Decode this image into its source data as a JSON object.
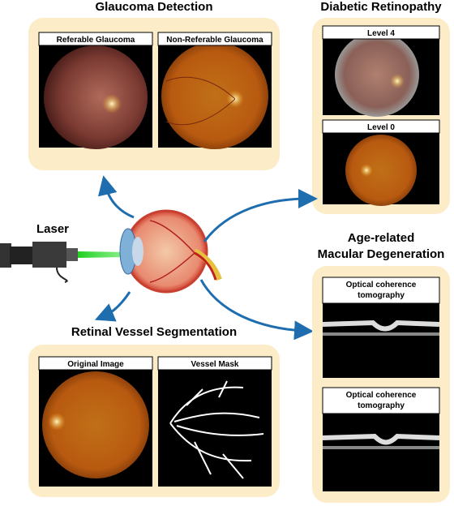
{
  "panels": {
    "glaucoma": {
      "title": "Glaucoma Detection",
      "images": [
        {
          "label": "Referable Glaucoma"
        },
        {
          "label": "Non-Referable Glaucoma"
        }
      ]
    },
    "retinopathy": {
      "title": "Diabetic Retinopathy",
      "images": [
        {
          "label": "Level 4"
        },
        {
          "label": "Level 0"
        }
      ]
    },
    "amd": {
      "title_lines": [
        "Age-related",
        "Macular Degeneration"
      ],
      "images": [
        {
          "label_lines": [
            "Optical coherence",
            "tomography"
          ]
        },
        {
          "label_lines": [
            "Optical coherence",
            "tomography"
          ]
        }
      ]
    },
    "vessel": {
      "title": "Retinal Vessel Segmentation",
      "images": [
        {
          "label": "Original Image"
        },
        {
          "label": "Vessel Mask"
        }
      ]
    }
  },
  "laser": {
    "label": "Laser"
  }
}
